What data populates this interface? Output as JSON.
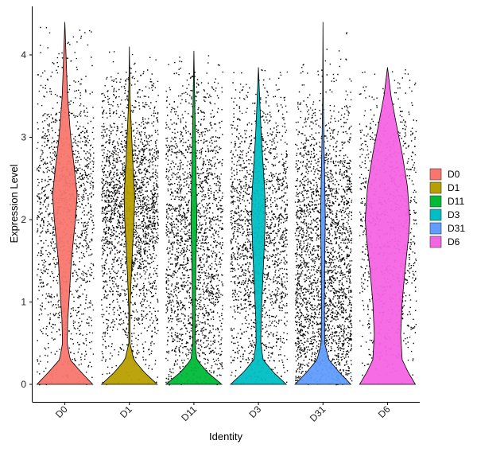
{
  "chart_data": {
    "type": "violin",
    "title": "",
    "xlabel": "Identity",
    "ylabel": "Expression Level",
    "ylim": [
      -0.25,
      4.5
    ],
    "yticks": [
      0,
      1,
      2,
      3,
      4
    ],
    "categories": [
      "D0",
      "D1",
      "D11",
      "D3",
      "D31",
      "D6"
    ],
    "legend": {
      "position": "right",
      "entries": [
        "D0",
        "D1",
        "D11",
        "D3",
        "D31",
        "D6"
      ]
    },
    "grid": false,
    "jitter_points": true,
    "series": [
      {
        "name": "D0",
        "color": "#F8766D",
        "max": 4.4,
        "density_points": [
          [
            0.0,
            0.95
          ],
          [
            0.15,
            0.55
          ],
          [
            0.3,
            0.18
          ],
          [
            0.5,
            0.08
          ],
          [
            0.8,
            0.1
          ],
          [
            1.0,
            0.14
          ],
          [
            1.5,
            0.22
          ],
          [
            2.0,
            0.36
          ],
          [
            2.3,
            0.42
          ],
          [
            2.7,
            0.3
          ],
          [
            3.0,
            0.2
          ],
          [
            3.5,
            0.09
          ],
          [
            4.0,
            0.04
          ],
          [
            4.4,
            0.0
          ]
        ]
      },
      {
        "name": "D1",
        "color": "#B79F00",
        "max": 4.1,
        "density_points": [
          [
            0.0,
            0.95
          ],
          [
            0.15,
            0.5
          ],
          [
            0.3,
            0.15
          ],
          [
            0.5,
            0.02
          ],
          [
            0.9,
            0.02
          ],
          [
            1.2,
            0.05
          ],
          [
            1.6,
            0.1
          ],
          [
            2.0,
            0.16
          ],
          [
            2.3,
            0.18
          ],
          [
            2.6,
            0.13
          ],
          [
            3.0,
            0.08
          ],
          [
            3.4,
            0.03
          ],
          [
            3.8,
            0.01
          ],
          [
            4.1,
            0.0
          ]
        ]
      },
      {
        "name": "D11",
        "color": "#00BA38",
        "max": 4.05,
        "density_points": [
          [
            0.0,
            0.95
          ],
          [
            0.15,
            0.45
          ],
          [
            0.3,
            0.1
          ],
          [
            0.5,
            0.04
          ],
          [
            1.0,
            0.05
          ],
          [
            1.5,
            0.07
          ],
          [
            2.0,
            0.1
          ],
          [
            2.4,
            0.08
          ],
          [
            2.8,
            0.06
          ],
          [
            3.2,
            0.04
          ],
          [
            3.6,
            0.02
          ],
          [
            4.05,
            0.0
          ]
        ]
      },
      {
        "name": "D3",
        "color": "#00BFC4",
        "max": 3.85,
        "density_points": [
          [
            0.0,
            0.95
          ],
          [
            0.15,
            0.5
          ],
          [
            0.3,
            0.16
          ],
          [
            0.5,
            0.08
          ],
          [
            0.8,
            0.09
          ],
          [
            1.2,
            0.14
          ],
          [
            1.6,
            0.19
          ],
          [
            2.0,
            0.23
          ],
          [
            2.3,
            0.22
          ],
          [
            2.6,
            0.17
          ],
          [
            3.0,
            0.1
          ],
          [
            3.4,
            0.05
          ],
          [
            3.85,
            0.0
          ]
        ]
      },
      {
        "name": "D31",
        "color": "#619CFF",
        "max": 4.4,
        "density_points": [
          [
            0.0,
            0.95
          ],
          [
            0.15,
            0.55
          ],
          [
            0.3,
            0.2
          ],
          [
            0.5,
            0.06
          ],
          [
            1.0,
            0.05
          ],
          [
            1.5,
            0.06
          ],
          [
            2.0,
            0.08
          ],
          [
            2.5,
            0.06
          ],
          [
            3.0,
            0.03
          ],
          [
            3.5,
            0.01
          ],
          [
            4.0,
            0.005
          ],
          [
            4.4,
            0.0
          ]
        ]
      },
      {
        "name": "D6",
        "color": "#F564E3",
        "max": 3.85,
        "density_points": [
          [
            0.0,
            0.95
          ],
          [
            0.15,
            0.7
          ],
          [
            0.3,
            0.5
          ],
          [
            0.6,
            0.45
          ],
          [
            1.0,
            0.5
          ],
          [
            1.4,
            0.6
          ],
          [
            1.8,
            0.72
          ],
          [
            2.0,
            0.76
          ],
          [
            2.4,
            0.68
          ],
          [
            2.8,
            0.5
          ],
          [
            3.2,
            0.28
          ],
          [
            3.5,
            0.12
          ],
          [
            3.85,
            0.0
          ]
        ]
      }
    ]
  }
}
